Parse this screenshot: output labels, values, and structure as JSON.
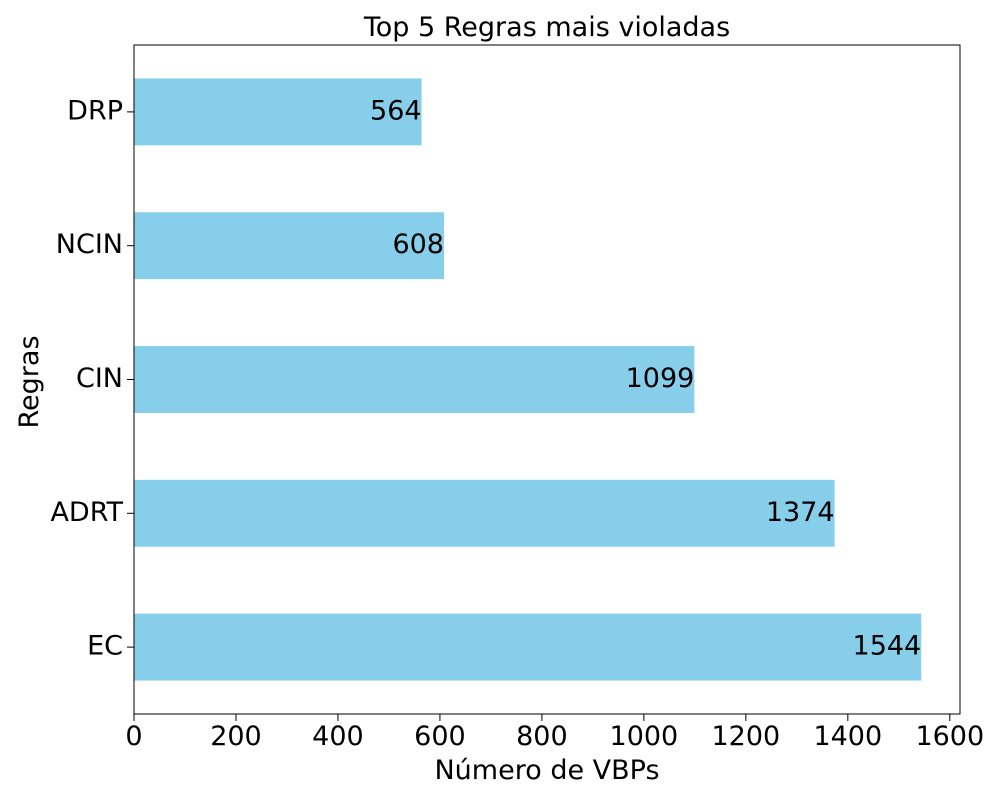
{
  "chart_data": {
    "type": "bar",
    "orientation": "horizontal",
    "title": "Top 5 Regras mais violadas",
    "xlabel": "Número de VBPs",
    "ylabel": "Regras",
    "categories": [
      "EC",
      "ADRT",
      "CIN",
      "NCIN",
      "DRP"
    ],
    "values": [
      1544,
      1374,
      1099,
      608,
      564
    ],
    "xlim": [
      0,
      1620
    ],
    "x_ticks": [
      0,
      200,
      400,
      600,
      800,
      1000,
      1200,
      1400,
      1600
    ],
    "bar_color": "#87ceeb",
    "grid": false,
    "data_labels": true
  }
}
